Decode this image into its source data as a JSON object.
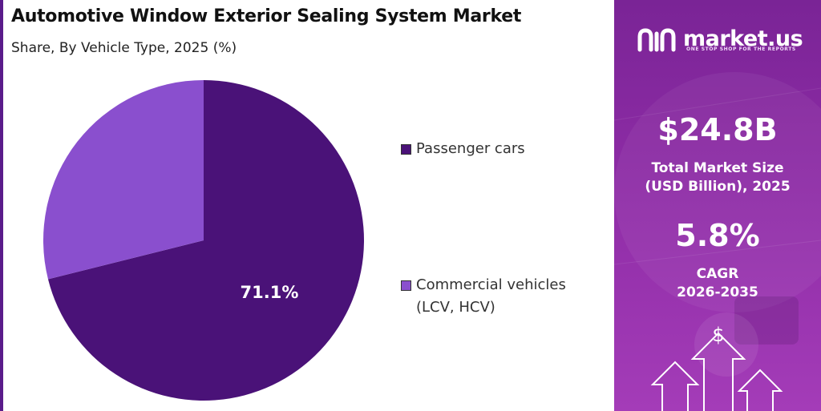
{
  "header": {
    "title": "Automotive Window Exterior Sealing System Market",
    "subtitle": "Share, By Vehicle Type, 2025 (%)"
  },
  "chart_data": {
    "type": "pie",
    "title": "Automotive Window Exterior Sealing System Market",
    "subtitle": "Share, By Vehicle Type, 2025 (%)",
    "categories": [
      "Passenger cars",
      "Commercial vehicles (LCV, HCV)"
    ],
    "values": [
      71.1,
      28.9
    ],
    "colors": [
      "#4a1278",
      "#8a4fce"
    ],
    "data_labels": [
      "71.1%",
      ""
    ],
    "legend_placement": "right"
  },
  "legend": {
    "items": [
      {
        "label_line1": "Passenger cars",
        "label_line2": "",
        "color": "#4a1278"
      },
      {
        "label_line1": "Commercial vehicles",
        "label_line2": "(LCV, HCV)",
        "color": "#8a4fce"
      }
    ]
  },
  "sidebar": {
    "brand_name": "market.us",
    "brand_tagline": "ONE STOP SHOP FOR THE REPORTS",
    "market_size_value": "$24.8B",
    "market_size_label_line1": "Total Market Size",
    "market_size_label_line2": "(USD Billion), 2025",
    "cagr_value": "5.8%",
    "cagr_label_line1": "CAGR",
    "cagr_label_line2": "2026-2035",
    "dollar_glyph": "$"
  }
}
